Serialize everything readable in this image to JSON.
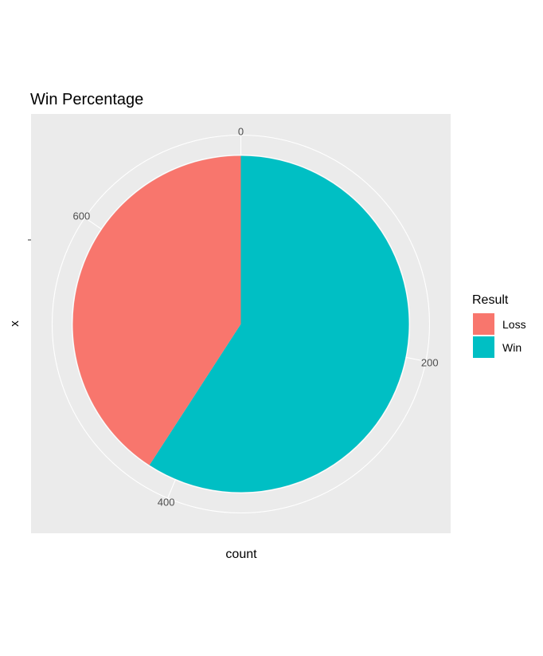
{
  "chart_data": {
    "type": "pie",
    "title": "Win Percentage",
    "xlabel": "count",
    "ylabel": "x",
    "series": [
      {
        "name": "Loss",
        "value": 290,
        "color": "#F8766D"
      },
      {
        "name": "Win",
        "value": 420,
        "color": "#00BFC4"
      }
    ],
    "theta_ticks": [
      0,
      200,
      400,
      600
    ],
    "theta_total": 710,
    "legend": {
      "title": "Result",
      "position": "right"
    },
    "panel_background": "#EBEBEB",
    "grid": true
  }
}
